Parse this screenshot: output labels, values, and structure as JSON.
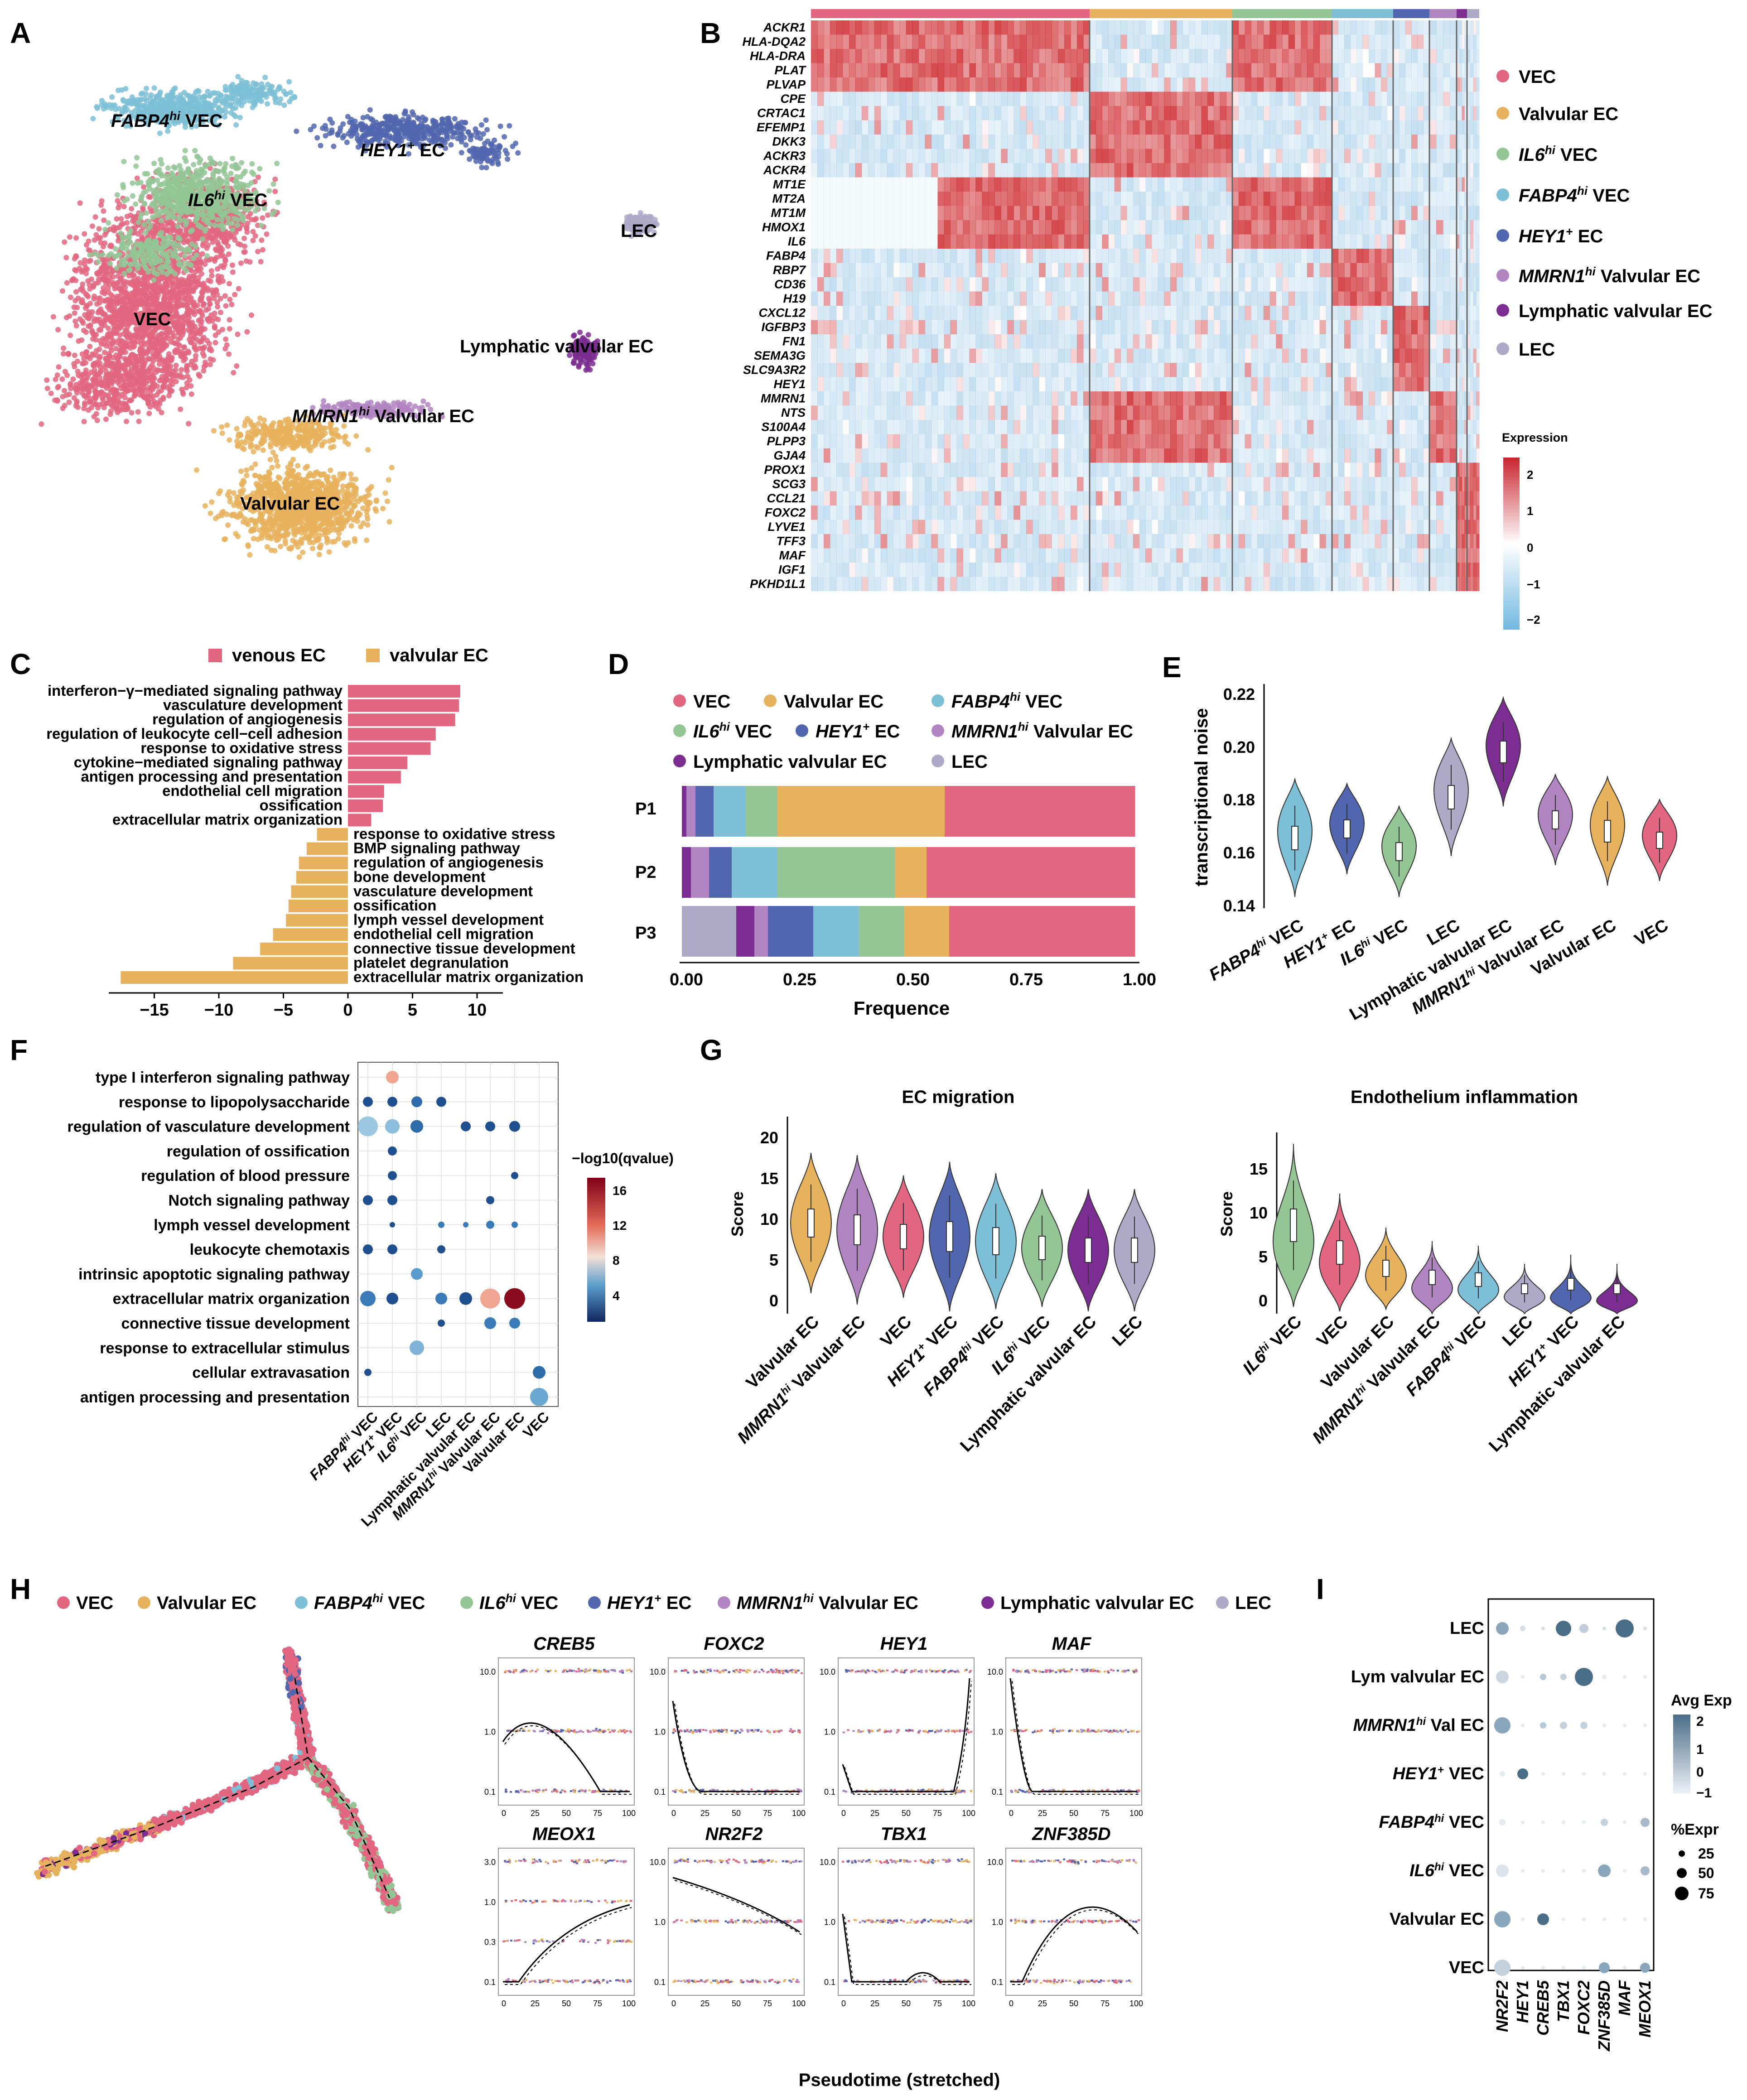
{
  "colors": {
    "VEC": "#e26680",
    "Valvular EC": "#e7b25d",
    "FABP4hi VEC": "#7dbfd6",
    "IL6hi VEC": "#93c595",
    "HEY1+ EC": "#5166ae",
    "MMRN1hi Valvular EC": "#b185c2",
    "Lymphatic valvular EC": "#7b2d91",
    "LEC": "#aea9c7"
  },
  "panels": {
    "A": {
      "label": "A",
      "clusters": [
        "FABP4",
        "hi",
        " VEC",
        "HEY1",
        "+",
        " EC",
        "IL6",
        "hi",
        " VEC",
        "LEC",
        "VEC",
        "Lymphatic valvular EC",
        "MMRN1",
        "hi",
        " Valvular EC",
        "Valvular EC"
      ]
    },
    "B": {
      "label": "B",
      "genes": [
        "ACKR1",
        "HLA-DQA2",
        "HLA-DRA",
        "PLAT",
        "PLVAP",
        "CPE",
        "CRTAC1",
        "EFEMP1",
        "DKK3",
        "ACKR3",
        "ACKR4",
        "MT1E",
        "MT2A",
        "MT1M",
        "HMOX1",
        "IL6",
        "FABP4",
        "RBP7",
        "CD36",
        "H19",
        "CXCL12",
        "IGFBP3",
        "FN1",
        "SEMA3G",
        "SLC9A3R2",
        "HEY1",
        "MMRN1",
        "NTS",
        "S100A4",
        "PLPP3",
        "GJA4",
        "PROX1",
        "SCG3",
        "CCL21",
        "FOXC2",
        "LYVE1",
        "TFF3",
        "MAF",
        "IGF1",
        "PKHD1L1"
      ],
      "legend": [
        {
          "name": "VEC",
          "color": "#e26680"
        },
        {
          "name": "Valvular EC",
          "color": "#e7b25d"
        },
        {
          "name": "IL6hi VEC",
          "color": "#93c595"
        },
        {
          "name": "FABP4hi VEC",
          "color": "#7dbfd6"
        },
        {
          "name": "HEY1+ EC",
          "color": "#5166ae"
        },
        {
          "name": "MMRN1hi Valvular EC",
          "color": "#b185c2"
        },
        {
          "name": "Lymphatic valvular EC",
          "color": "#7b2d91"
        },
        {
          "name": "LEC",
          "color": "#aea9c7"
        }
      ],
      "legend_text": [
        "VEC",
        "Valvular EC",
        "IL6",
        "hi",
        " VEC",
        "FABP4",
        "hi",
        " VEC",
        "HEY1",
        "+",
        " EC",
        "MMRN1",
        "hi",
        " Valvular EC",
        "Lymphatic valvular EC",
        "LEC"
      ],
      "colorbar": {
        "title": "Expression",
        "ticks": [
          "2",
          "1",
          "0",
          "−1",
          "−2"
        ]
      }
    },
    "C": {
      "label": "C",
      "legend": [
        "venous EC",
        "valvular EC"
      ],
      "venous_terms": [
        {
          "term": "interferon−γ−mediated signaling pathway",
          "value": 8.7
        },
        {
          "term": "vasculature development",
          "value": 8.6
        },
        {
          "term": "regulation of angiogenesis",
          "value": 8.3
        },
        {
          "term": "regulation of leukocyte cell−cell adhesion",
          "value": 6.8
        },
        {
          "term": "response to oxidative stress",
          "value": 6.4
        },
        {
          "term": "cytokine−mediated signaling pathway",
          "value": 4.6
        },
        {
          "term": "antigen processing and presentation",
          "value": 4.1
        },
        {
          "term": "endothelial cell migration",
          "value": 2.8
        },
        {
          "term": "ossification",
          "value": 2.7
        },
        {
          "term": "extracellular matrix organization",
          "value": 1.8
        }
      ],
      "valvular_terms": [
        {
          "term": "response to oxidative stress",
          "value": -2.4
        },
        {
          "term": "BMP signaling pathway",
          "value": -3.2
        },
        {
          "term": "regulation of angiogenesis",
          "value": -3.8
        },
        {
          "term": "bone development",
          "value": -4.0
        },
        {
          "term": "vasculature development",
          "value": -4.4
        },
        {
          "term": "ossification",
          "value": -4.6
        },
        {
          "term": "lymph vessel development",
          "value": -4.8
        },
        {
          "term": "endothelial cell migration",
          "value": -5.8
        },
        {
          "term": "connective tissue development",
          "value": -6.8
        },
        {
          "term": "platelet degranulation",
          "value": -8.9
        },
        {
          "term": "extracellular matrix organization",
          "value": -17.6
        }
      ],
      "xticks": [
        "−15",
        "−10",
        "−5",
        "0",
        "5",
        "10"
      ]
    },
    "D": {
      "label": "D",
      "legend_text": [
        "VEC",
        "Valvular EC",
        "FABP4",
        "hi",
        " VEC",
        "IL6",
        "hi",
        " VEC",
        "HEY1",
        "+",
        " EC",
        "MMRN1",
        "hi",
        " Valvular EC",
        "Lymphatic valvular EC",
        "LEC"
      ],
      "rows": [
        "P1",
        "P2",
        "P3"
      ],
      "xticks": [
        "0.00",
        "0.25",
        "0.50",
        "0.75",
        "1.00"
      ],
      "xlabel": "Frequence"
    },
    "E": {
      "label": "E",
      "ylabel": "transcriptional noise",
      "yticks": [
        "0.14",
        "0.16",
        "0.18",
        "0.20",
        "0.22"
      ],
      "xlabels": [
        "FABP4",
        "hi",
        " VEC",
        "HEY1",
        "+",
        " EC",
        "IL6",
        "hi",
        " VEC",
        "LEC",
        "Lymphatic valvular EC",
        "MMRN1",
        "hi",
        " Valvular EC",
        "Valvular EC",
        "VEC"
      ]
    },
    "F": {
      "label": "F",
      "terms": [
        "type I interferon signaling pathway",
        "response to lipopolysaccharide",
        "regulation of vasculature development",
        "regulation of ossification",
        "regulation of blood pressure",
        "Notch signaling pathway",
        "lymph vessel development",
        "leukocyte chemotaxis",
        "intrinsic apoptotic signaling pathway",
        "extracellular matrix organization",
        "connective tissue development",
        "response to extracellular stimulus",
        "cellular extravasation",
        "antigen processing and presentation"
      ],
      "xlabels": [
        "FABP4",
        "hi",
        " VEC",
        "HEY1",
        "+",
        " VEC",
        "IL6",
        "hi",
        " VEC",
        "LEC",
        "Lymphatic valvular EC",
        "MMRN1",
        "hi",
        " Valvular EC",
        "Valvular EC",
        "VEC"
      ],
      "colorbar": {
        "title": "−log10(qvalue)",
        "ticks": [
          "16",
          "12",
          "8",
          "4"
        ]
      }
    },
    "G": {
      "label": "G",
      "left": {
        "title": "EC migration",
        "ylabel": "Score",
        "yticks": [
          "0",
          "5",
          "10",
          "15",
          "20"
        ],
        "xlabels": [
          "Valvular EC",
          "MMRN1",
          "hi",
          " Valvular EC",
          "VEC",
          "HEY1",
          "+",
          " VEC",
          "FABP4",
          "hi",
          " VEC",
          "IL6",
          "hi",
          " VEC",
          "Lymphatic valvular EC",
          "LEC"
        ]
      },
      "right": {
        "title": "Endothelium inflammation",
        "ylabel": "Score",
        "yticks": [
          "0",
          "5",
          "10",
          "15"
        ],
        "xlabels": [
          "IL6",
          "hi",
          " VEC",
          "VEC",
          "Valvular EC",
          "MMRN1",
          "hi",
          " Valvular EC",
          "FABP4",
          "hi",
          " VEC",
          "LEC",
          "HEY1",
          "+",
          " VEC",
          "Lymphatic valvular EC"
        ]
      }
    },
    "H": {
      "label": "H",
      "legend_text": [
        "VEC",
        "Valvular EC",
        "FABP4",
        "hi",
        " VEC",
        "IL6",
        "hi",
        " VEC",
        "HEY1",
        "+",
        " EC",
        "MMRN1",
        "hi",
        " Valvular EC",
        "Lymphatic valvular EC",
        "LEC"
      ],
      "genes": [
        "CREB5",
        "FOXC2",
        "HEY1",
        "MAF",
        "MEOX1",
        "NR2F2",
        "TBX1",
        "ZNF385D"
      ],
      "yticks_top": [
        "10.0",
        "1.0",
        "0.1"
      ],
      "yticks_meox": [
        "3.0",
        "1.0",
        "0.3",
        "0.1"
      ],
      "yticks_10": [
        "10.0",
        "1.0",
        "0.1"
      ],
      "xticks": [
        "0",
        "25",
        "50",
        "75",
        "100"
      ],
      "xlabel": "Pseudotime (stretched)"
    },
    "I": {
      "label": "I",
      "rows": [
        "LEC",
        "Lym valvular EC",
        "MMRN1",
        "hi",
        " Val EC",
        "HEY1",
        "+",
        " VEC",
        "FABP4",
        "hi",
        " VEC",
        "IL6",
        "hi",
        " VEC",
        "Valvular EC",
        "VEC"
      ],
      "cols": [
        "NR2F2",
        "HEY1",
        "CREB5",
        "TBX1",
        "FOXC2",
        "ZNF385D",
        "MAF",
        "MEOX1"
      ],
      "legend": {
        "avg_title": "Avg Exp",
        "avg_ticks": [
          "2",
          "1",
          "0",
          "−1"
        ],
        "pct_title": "%Expr",
        "pct_ticks": [
          "25",
          "50",
          "75"
        ]
      }
    }
  }
}
